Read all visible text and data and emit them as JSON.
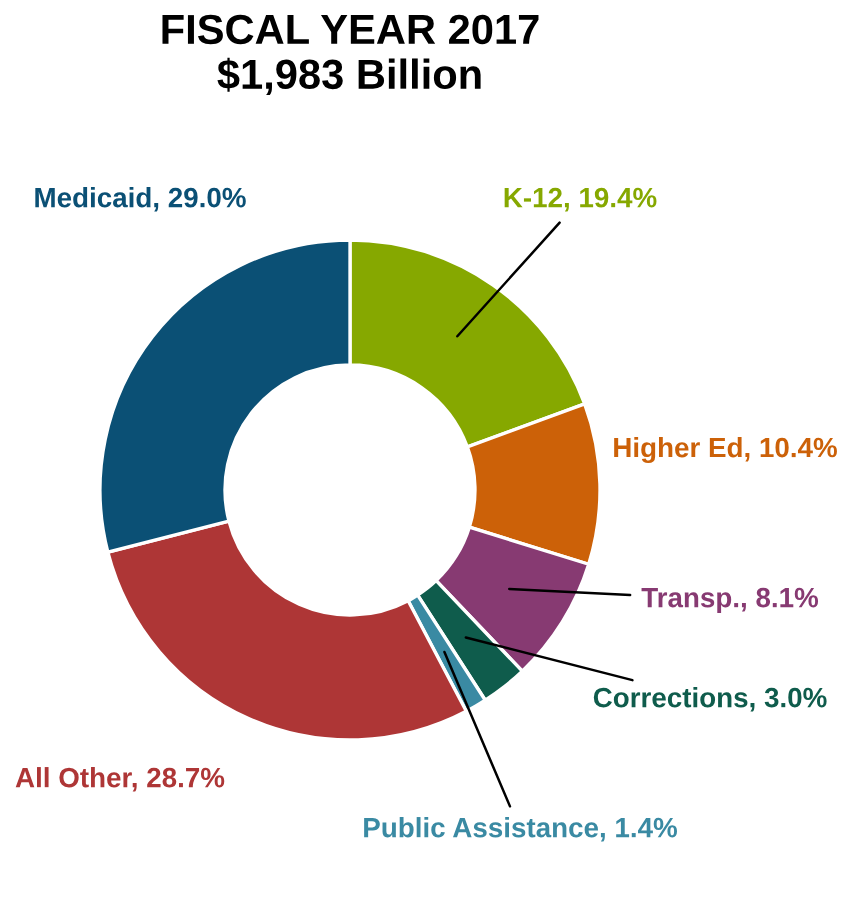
{
  "chart_data": {
    "type": "donut",
    "title": "FISCAL YEAR 2017\n$1,983 Billion",
    "categories": [
      "K-12",
      "Higher Ed",
      "Transp.",
      "Corrections",
      "Public Assistance",
      "All Other",
      "Medicaid"
    ],
    "values": [
      19.4,
      10.4,
      8.1,
      3.0,
      1.4,
      28.7,
      29.0
    ],
    "value_labels": [
      "19.4%",
      "10.4%",
      "8.1%",
      "3.0%",
      "1.4%",
      "28.7%",
      "29.0%"
    ],
    "colors": [
      "#86a800",
      "#cc6108",
      "#873a72",
      "#0f5c4c",
      "#3a8aa3",
      "#ae3636",
      "#0b5075"
    ]
  }
}
